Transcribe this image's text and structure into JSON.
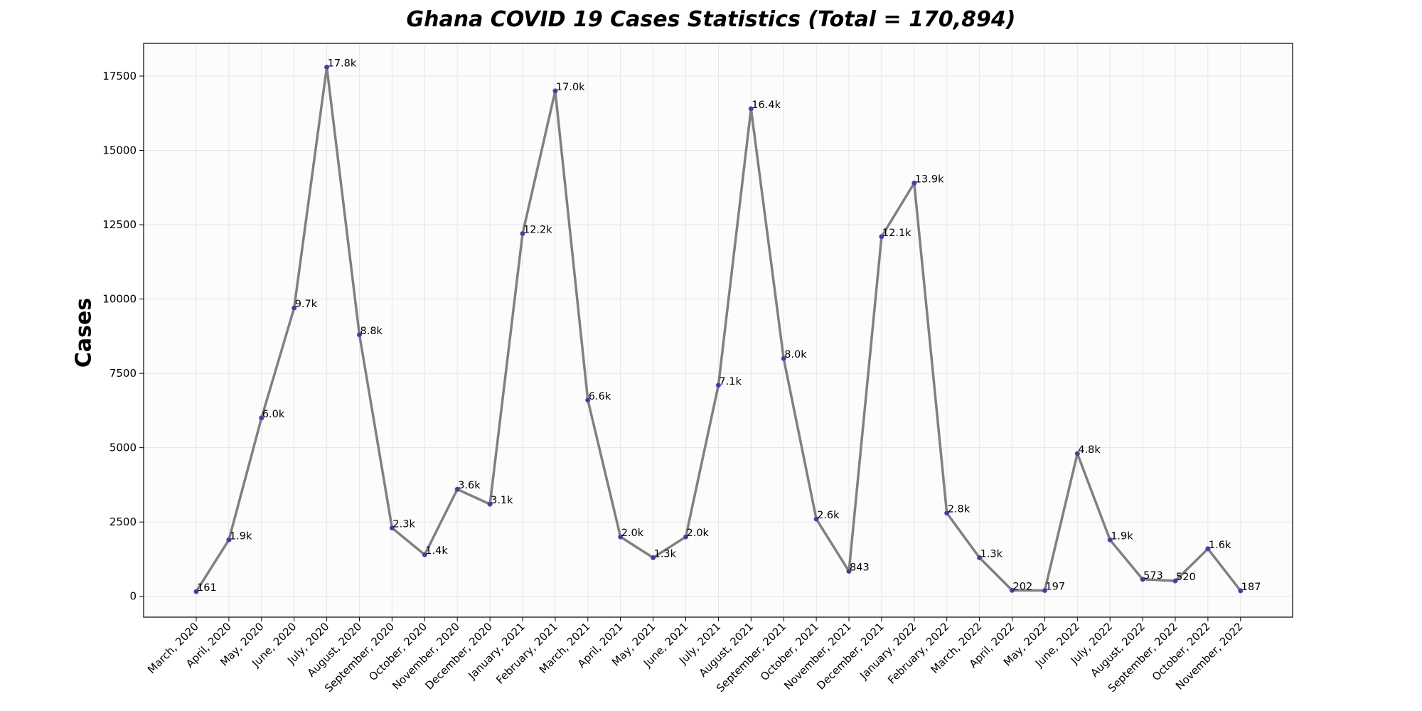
{
  "chart_data": {
    "type": "line",
    "title": "Ghana COVID 19 Cases Statistics (Total = 170,894)",
    "xlabel": "",
    "ylabel": "Cases",
    "grid": true,
    "ylim": [
      -700,
      18600
    ],
    "yticks": [
      0,
      2500,
      5000,
      7500,
      10000,
      12500,
      15000,
      17500
    ],
    "line_color": "#808080",
    "marker_color": "#483d8b",
    "categories": [
      "March, 2020",
      "April, 2020",
      "May, 2020",
      "June, 2020",
      "July, 2020",
      "August, 2020",
      "September, 2020",
      "October, 2020",
      "November, 2020",
      "December, 2020",
      "January, 2021",
      "February, 2021",
      "March, 2021",
      "April, 2021",
      "May, 2021",
      "June, 2021",
      "July, 2021",
      "August, 2021",
      "September, 2021",
      "October, 2021",
      "November, 2021",
      "December, 2021",
      "January, 2022",
      "February, 2022",
      "March, 2022",
      "April, 2022",
      "May, 2022",
      "June, 2022",
      "July, 2022",
      "August, 2022",
      "September, 2022",
      "October, 2022",
      "November, 2022"
    ],
    "series": [
      {
        "values": [
          161,
          1900,
          6000,
          9700,
          17800,
          8800,
          2300,
          1400,
          3600,
          3100,
          12200,
          17000,
          6600,
          2000,
          1300,
          2000,
          7100,
          16400,
          8000,
          2600,
          843,
          12100,
          13900,
          2800,
          1300,
          202,
          197,
          4800,
          1900,
          573,
          520,
          1600,
          187
        ],
        "labels": [
          "161",
          "1.9k",
          "6.0k",
          "9.7k",
          "17.8k",
          "8.8k",
          "2.3k",
          "1.4k",
          "3.6k",
          "3.1k",
          "12.2k",
          "17.0k",
          "6.6k",
          "2.0k",
          "1.3k",
          "2.0k",
          "7.1k",
          "16.4k",
          "8.0k",
          "2.6k",
          "843",
          "12.1k",
          "13.9k",
          "2.8k",
          "1.3k",
          "202",
          "197",
          "4.8k",
          "1.9k",
          "573",
          "520",
          "1.6k",
          "187"
        ]
      }
    ]
  }
}
